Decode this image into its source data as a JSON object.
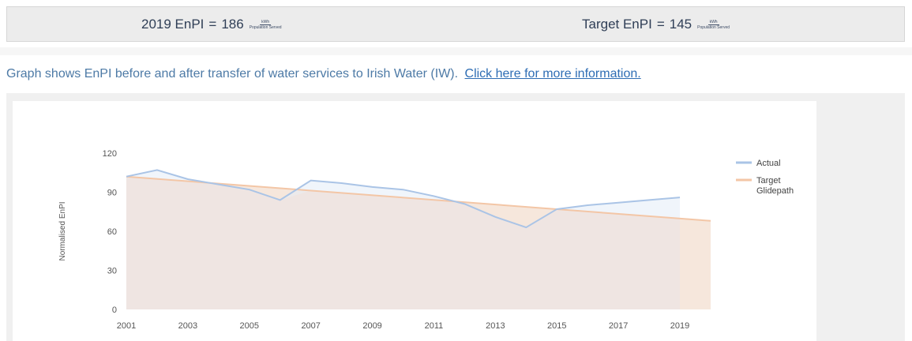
{
  "kpis": {
    "current": {
      "label": "2019 EnPI",
      "value": "186",
      "unit_numerator": "kWh",
      "unit_denominator": "Population Served"
    },
    "target": {
      "label": "Target EnPI",
      "value": "145",
      "unit_numerator": "kWh",
      "unit_denominator": "Population Served"
    }
  },
  "caption": {
    "text": "Graph shows EnPI before and after transfer of water services to Irish Water (IW).",
    "link": "Click here for more information."
  },
  "colors": {
    "actual": "#aac4e6",
    "actual_fill": "#e3ecf8",
    "target": "#f3c6a6",
    "target_fill": "#f6e7dc"
  },
  "chart_data": {
    "type": "area",
    "ylabel": "Normalised EnPI",
    "ylim": [
      0,
      120
    ],
    "yticks": [
      0,
      30,
      60,
      90,
      120
    ],
    "xlim": [
      2001,
      2020
    ],
    "xticks_top": [
      2001,
      2003,
      2005,
      2007,
      2009,
      2011,
      2013,
      2015,
      2017,
      2019
    ],
    "legend_position": "right",
    "series": [
      {
        "name": "Actual",
        "x": [
          2001,
          2002,
          2003,
          2004,
          2005,
          2006,
          2007,
          2008,
          2009,
          2010,
          2011,
          2012,
          2013,
          2014,
          2015,
          2016,
          2017,
          2018,
          2019
        ],
        "y": [
          102,
          107,
          100,
          96,
          92,
          84,
          99,
          97,
          94,
          92,
          87,
          81,
          71,
          63,
          77,
          80,
          82,
          84,
          86
        ]
      },
      {
        "name": "Target Glidepath",
        "x": [
          2001,
          2020
        ],
        "y": [
          102,
          68
        ]
      }
    ]
  }
}
